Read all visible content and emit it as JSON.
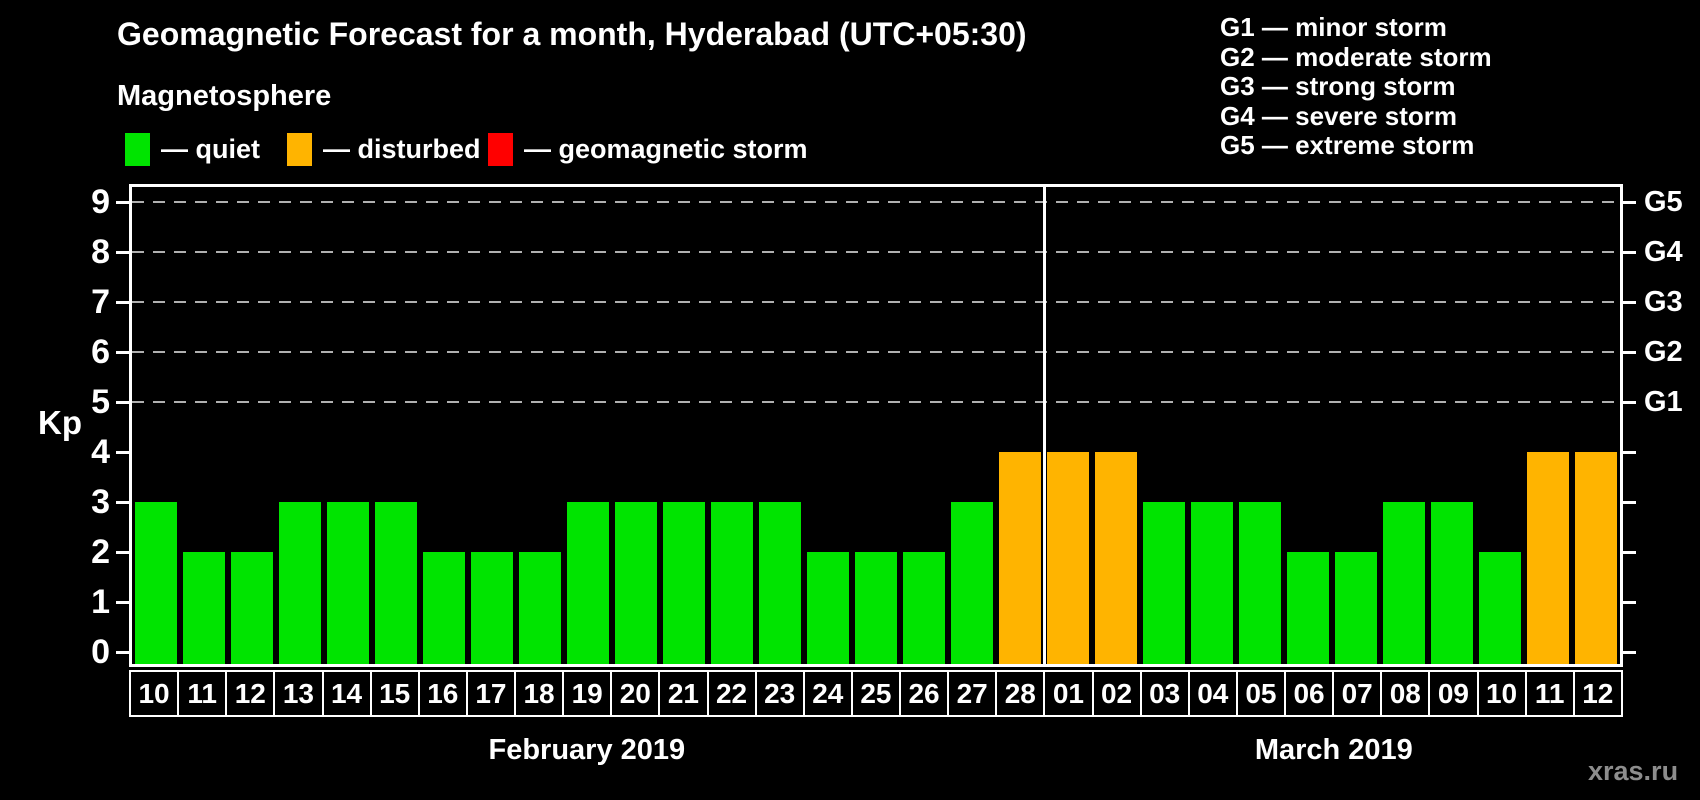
{
  "title": "Geomagnetic Forecast for a month, Hyderabad (UTC+05:30)",
  "subtitle": "Magnetosphere",
  "colors": {
    "quiet": "#00e400",
    "disturbed": "#ffb400",
    "storm": "#ff0000",
    "grid": "#b0b0b0",
    "axis": "#ffffff",
    "watermark": "#8d8d8d"
  },
  "legend": {
    "items": [
      {
        "status": "quiet",
        "label": "— quiet"
      },
      {
        "status": "disturbed",
        "label": "— disturbed"
      },
      {
        "status": "storm",
        "label": "— geomagnetic storm"
      }
    ]
  },
  "g_legend": [
    "G1 — minor storm",
    "G2 — moderate storm",
    "G3 — strong storm",
    "G4 — severe storm",
    "G5 — extreme storm"
  ],
  "axis": {
    "kp_label": "Kp",
    "kp_ticks": [
      0,
      1,
      2,
      3,
      4,
      5,
      6,
      7,
      8,
      9
    ],
    "g_ticks": [
      {
        "label": "G1",
        "kp": 5
      },
      {
        "label": "G2",
        "kp": 6
      },
      {
        "label": "G3",
        "kp": 7
      },
      {
        "label": "G4",
        "kp": 8
      },
      {
        "label": "G5",
        "kp": 9
      }
    ]
  },
  "watermark": "xras.ru",
  "chart_data": {
    "type": "bar",
    "title": "Geomagnetic Forecast for a month, Hyderabad (UTC+05:30)",
    "ylabel": "Kp",
    "ylim": [
      0,
      9
    ],
    "grid": "dashed horizontal lines at Kp 5,6,7,8,9 only",
    "legend_position": "top-left and top-right",
    "categories": [
      "10",
      "11",
      "12",
      "13",
      "14",
      "15",
      "16",
      "17",
      "18",
      "19",
      "20",
      "21",
      "22",
      "23",
      "24",
      "25",
      "26",
      "27",
      "28",
      "01",
      "02",
      "03",
      "04",
      "05",
      "06",
      "07",
      "08",
      "09",
      "10",
      "11",
      "12"
    ],
    "values": [
      3,
      2,
      2,
      3,
      3,
      3,
      2,
      2,
      2,
      3,
      3,
      3,
      3,
      3,
      2,
      2,
      2,
      3,
      4,
      4,
      4,
      3,
      3,
      3,
      2,
      2,
      3,
      3,
      2,
      4,
      4
    ],
    "statuses": [
      "quiet",
      "quiet",
      "quiet",
      "quiet",
      "quiet",
      "quiet",
      "quiet",
      "quiet",
      "quiet",
      "quiet",
      "quiet",
      "quiet",
      "quiet",
      "quiet",
      "quiet",
      "quiet",
      "quiet",
      "quiet",
      "disturbed",
      "disturbed",
      "disturbed",
      "quiet",
      "quiet",
      "quiet",
      "quiet",
      "quiet",
      "quiet",
      "quiet",
      "quiet",
      "disturbed",
      "disturbed"
    ],
    "months": [
      {
        "label": "February 2019",
        "days": 19
      },
      {
        "label": "March 2019",
        "days": 12
      }
    ],
    "right_axis_labels": {
      "G1": 5,
      "G2": 6,
      "G3": 7,
      "G4": 8,
      "G5": 9
    }
  }
}
